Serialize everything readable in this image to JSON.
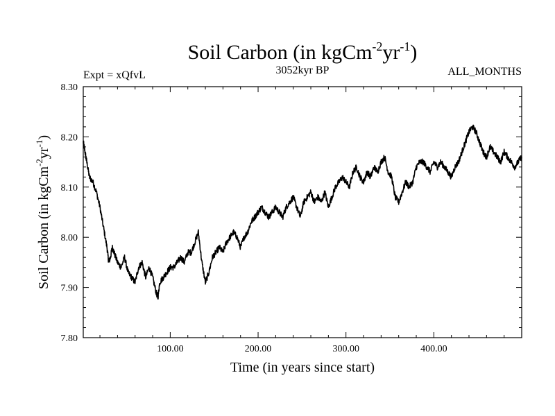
{
  "chart_data": {
    "type": "line",
    "title": {
      "base": "Soil Carbon (in kgCm",
      "sup1": "-2",
      "mid": "yr",
      "sup2": "-1",
      "end": ")"
    },
    "left_label": "Expt = xQfvL",
    "center_label": "3052kyr BP",
    "right_label": "ALL_MONTHS",
    "xlabel": "Time (in years since start)",
    "ylabel": {
      "base": "Soil Carbon (in kgCm",
      "sup1": "-2",
      "mid": "yr",
      "sup2": "-1",
      "end": ")"
    },
    "xlim": [
      1,
      500
    ],
    "ylim": [
      7.8,
      8.3
    ],
    "x_ticks": [
      100,
      200,
      300,
      400
    ],
    "x_tick_labels": [
      "100.00",
      "200.00",
      "300.00",
      "400.00"
    ],
    "y_ticks": [
      7.8,
      7.9,
      8.0,
      8.1,
      8.2,
      8.3
    ],
    "y_tick_labels": [
      "7.80",
      "7.90",
      "8.00",
      "8.10",
      "8.20",
      "8.30"
    ],
    "series": [
      {
        "name": "Soil Carbon",
        "x": [
          1,
          3,
          5,
          8,
          12,
          16,
          20,
          24,
          28,
          30,
          32,
          34,
          36,
          40,
          44,
          48,
          52,
          56,
          60,
          64,
          68,
          72,
          76,
          80,
          84,
          86,
          88,
          92,
          96,
          100,
          104,
          108,
          112,
          116,
          120,
          124,
          128,
          132,
          136,
          140,
          144,
          148,
          152,
          156,
          160,
          164,
          168,
          172,
          176,
          180,
          184,
          188,
          192,
          196,
          200,
          204,
          208,
          212,
          216,
          220,
          224,
          228,
          232,
          236,
          240,
          244,
          248,
          252,
          256,
          260,
          264,
          268,
          272,
          276,
          280,
          284,
          288,
          292,
          296,
          300,
          304,
          308,
          312,
          316,
          320,
          324,
          328,
          332,
          336,
          340,
          344,
          348,
          352,
          356,
          360,
          364,
          368,
          372,
          376,
          380,
          384,
          388,
          392,
          396,
          400,
          404,
          408,
          412,
          416,
          420,
          424,
          428,
          432,
          436,
          440,
          444,
          448,
          452,
          456,
          460,
          464,
          468,
          472,
          476,
          480,
          484,
          488,
          492,
          496,
          500
        ],
        "values": [
          8.19,
          8.17,
          8.15,
          8.12,
          8.11,
          8.09,
          8.06,
          8.02,
          7.98,
          7.95,
          7.96,
          7.98,
          7.97,
          7.95,
          7.94,
          7.96,
          7.93,
          7.92,
          7.91,
          7.94,
          7.95,
          7.92,
          7.94,
          7.92,
          7.89,
          7.88,
          7.91,
          7.92,
          7.93,
          7.94,
          7.94,
          7.95,
          7.96,
          7.95,
          7.97,
          7.97,
          7.99,
          8.01,
          7.95,
          7.91,
          7.93,
          7.96,
          7.97,
          7.98,
          7.97,
          7.99,
          8.0,
          8.01,
          8.0,
          7.98,
          8.0,
          8.01,
          8.03,
          8.04,
          8.05,
          8.06,
          8.05,
          8.04,
          8.05,
          8.06,
          8.05,
          8.04,
          8.06,
          8.07,
          8.08,
          8.06,
          8.04,
          8.07,
          8.08,
          8.09,
          8.07,
          8.08,
          8.07,
          8.09,
          8.06,
          8.08,
          8.1,
          8.11,
          8.12,
          8.11,
          8.1,
          8.13,
          8.14,
          8.12,
          8.11,
          8.13,
          8.12,
          8.14,
          8.13,
          8.15,
          8.16,
          8.13,
          8.12,
          8.08,
          8.07,
          8.09,
          8.11,
          8.1,
          8.11,
          8.14,
          8.15,
          8.15,
          8.14,
          8.13,
          8.15,
          8.14,
          8.15,
          8.14,
          8.13,
          8.12,
          8.14,
          8.15,
          8.17,
          8.19,
          8.21,
          8.22,
          8.21,
          8.19,
          8.17,
          8.16,
          8.18,
          8.17,
          8.16,
          8.15,
          8.17,
          8.16,
          8.15,
          8.14,
          8.15,
          8.16
        ]
      }
    ],
    "line_color": "#000000",
    "grid": false
  }
}
